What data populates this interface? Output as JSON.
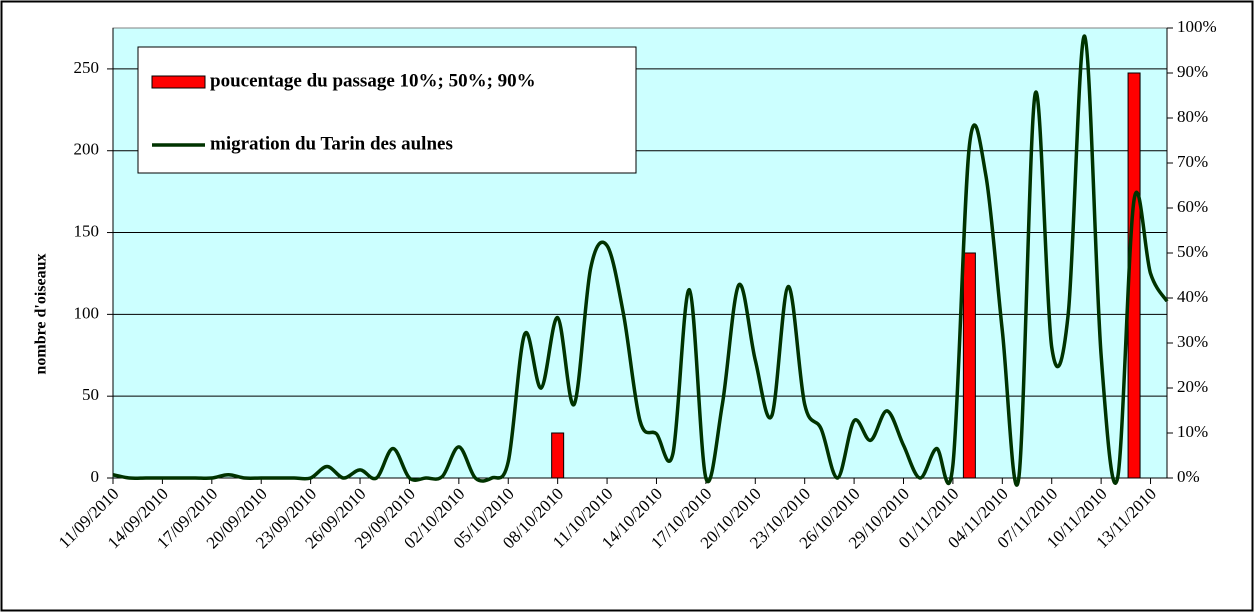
{
  "chart_data": {
    "type": "bar-line",
    "y_axis_label": "nombre d'oiseaux",
    "categories": [
      "11/09/2010",
      null,
      null,
      "14/09/2010",
      null,
      null,
      "17/09/2010",
      null,
      null,
      "20/09/2010",
      null,
      null,
      "23/09/2010",
      null,
      null,
      "26/09/2010",
      null,
      null,
      "29/09/2010",
      null,
      null,
      "02/10/2010",
      null,
      null,
      "05/10/2010",
      null,
      null,
      "08/10/2010",
      null,
      null,
      "11/10/2010",
      null,
      null,
      "14/10/2010",
      null,
      null,
      "17/10/2010",
      null,
      null,
      "20/10/2010",
      null,
      null,
      "23/10/2010",
      null,
      null,
      "26/10/2010",
      null,
      null,
      "29/10/2010",
      null,
      null,
      "01/11/2010",
      null,
      null,
      "04/11/2010",
      null,
      null,
      "07/11/2010",
      null,
      null,
      "10/11/2010",
      null,
      null,
      "13/11/2010",
      null
    ],
    "series": [
      {
        "name": "poucentage du passage 10%; 50%; 90%",
        "type": "bar",
        "axis": "y2",
        "color": "#ff0000",
        "values": [
          null,
          null,
          null,
          null,
          null,
          null,
          null,
          null,
          null,
          null,
          null,
          null,
          null,
          null,
          null,
          null,
          null,
          null,
          null,
          null,
          null,
          null,
          null,
          null,
          null,
          null,
          null,
          10,
          null,
          null,
          null,
          null,
          null,
          null,
          null,
          null,
          null,
          null,
          null,
          null,
          null,
          null,
          null,
          null,
          null,
          null,
          null,
          null,
          null,
          null,
          null,
          null,
          50,
          null,
          null,
          null,
          null,
          null,
          null,
          null,
          null,
          null,
          90,
          null,
          null
        ]
      },
      {
        "name": "migration du Tarin des aulnes",
        "type": "line",
        "color": "#003300",
        "values": [
          2,
          0,
          0,
          0,
          0,
          0,
          0,
          2,
          0,
          0,
          0,
          0,
          0,
          7,
          0,
          5,
          0,
          18,
          0,
          0,
          1,
          19,
          0,
          0,
          10,
          88,
          55,
          98,
          45,
          128,
          142,
          100,
          35,
          27,
          15,
          115,
          0,
          45,
          118,
          72,
          38,
          117,
          45,
          30,
          0,
          35,
          23,
          41,
          20,
          0,
          18,
          8,
          203,
          185,
          90,
          0,
          235,
          80,
          100,
          270,
          75,
          0,
          170,
          125,
          108
        ]
      }
    ],
    "ylim": [
      0,
      275
    ],
    "yticks": [
      0,
      50,
      100,
      150,
      200,
      250
    ],
    "y2lim": [
      0,
      100
    ],
    "y2ticks": [
      {
        "value": 0,
        "label": "0%"
      },
      {
        "value": 10,
        "label": "10%"
      },
      {
        "value": 20,
        "label": "20%"
      },
      {
        "value": 30,
        "label": "30%"
      },
      {
        "value": 40,
        "label": "40%"
      },
      {
        "value": 50,
        "label": "50%"
      },
      {
        "value": 60,
        "label": "60%"
      },
      {
        "value": 70,
        "label": "70%"
      },
      {
        "value": 80,
        "label": "80%"
      },
      {
        "value": 90,
        "label": "90%"
      },
      {
        "value": 100,
        "label": "100%"
      }
    ],
    "grid": true,
    "plot_background": "#ccffff"
  }
}
